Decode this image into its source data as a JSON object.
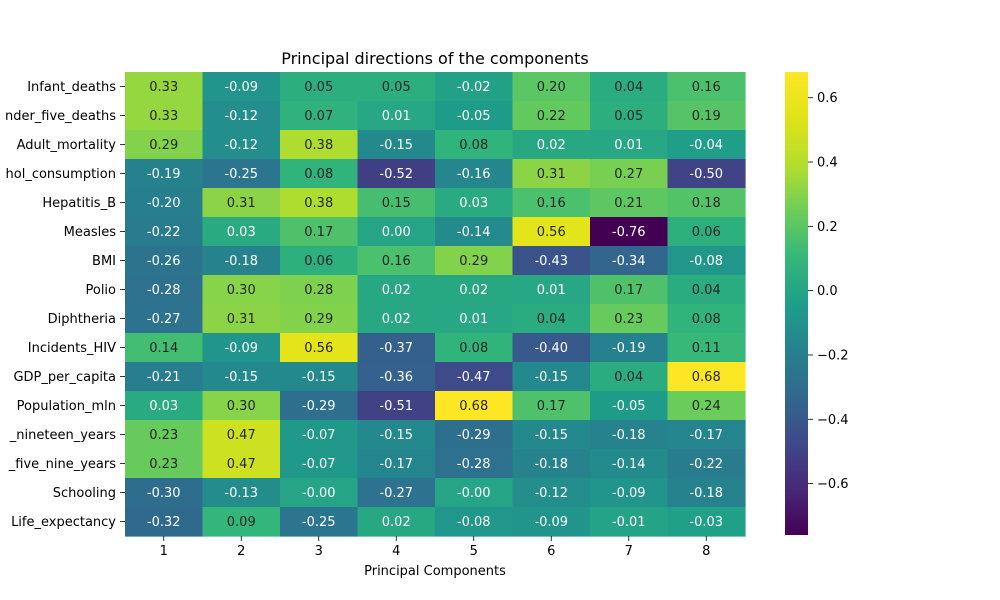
{
  "chart_data": {
    "type": "heatmap",
    "title": "Principal directions of the components",
    "xlabel": "Principal Components",
    "ylabel": "",
    "x_categories": [
      "1",
      "2",
      "3",
      "4",
      "5",
      "6",
      "7",
      "8"
    ],
    "y_labels_visible": [
      "Infant_deaths",
      "nder_five_deaths",
      "Adult_mortality",
      "hol_consumption",
      "Hepatitis_B",
      "Measles",
      "BMI",
      "Polio",
      "Diphtheria",
      "Incidents_HIV",
      "GDP_per_capita",
      "Population_mln",
      "_nineteen_years",
      "_five_nine_years",
      "Schooling",
      "Life_expectancy"
    ],
    "values": [
      [
        0.33,
        -0.09,
        0.05,
        0.05,
        -0.02,
        0.2,
        0.04,
        0.16
      ],
      [
        0.33,
        -0.12,
        0.07,
        0.01,
        -0.05,
        0.22,
        0.05,
        0.19
      ],
      [
        0.29,
        -0.12,
        0.38,
        -0.15,
        0.08,
        0.02,
        0.01,
        -0.04
      ],
      [
        -0.19,
        -0.25,
        0.08,
        -0.52,
        -0.16,
        0.31,
        0.27,
        -0.5
      ],
      [
        -0.2,
        0.31,
        0.38,
        0.15,
        0.03,
        0.16,
        0.21,
        0.18
      ],
      [
        -0.22,
        0.03,
        0.17,
        0.0,
        -0.14,
        0.56,
        -0.76,
        0.06
      ],
      [
        -0.26,
        -0.18,
        0.06,
        0.16,
        0.29,
        -0.43,
        -0.34,
        -0.08
      ],
      [
        -0.28,
        0.3,
        0.28,
        0.02,
        0.02,
        0.01,
        0.17,
        0.04
      ],
      [
        -0.27,
        0.31,
        0.29,
        0.02,
        0.01,
        0.04,
        0.23,
        0.08
      ],
      [
        0.14,
        -0.09,
        0.56,
        -0.37,
        0.08,
        -0.4,
        -0.19,
        0.11
      ],
      [
        -0.21,
        -0.15,
        -0.15,
        -0.36,
        -0.47,
        -0.15,
        0.04,
        0.68
      ],
      [
        0.03,
        0.3,
        -0.29,
        -0.51,
        0.68,
        0.17,
        -0.05,
        0.24
      ],
      [
        0.23,
        0.47,
        -0.07,
        -0.15,
        -0.29,
        -0.15,
        -0.18,
        -0.17
      ],
      [
        0.23,
        0.47,
        -0.07,
        -0.17,
        -0.28,
        -0.18,
        -0.14,
        -0.22
      ],
      [
        -0.3,
        -0.13,
        -0.0,
        -0.27,
        -0.0,
        -0.12,
        -0.09,
        -0.18
      ],
      [
        -0.32,
        0.09,
        -0.25,
        0.02,
        -0.08,
        -0.09,
        -0.01,
        -0.03
      ]
    ],
    "value_labels": [
      [
        "0.33",
        "-0.09",
        "0.05",
        "0.05",
        "-0.02",
        "0.20",
        "0.04",
        "0.16"
      ],
      [
        "0.33",
        "-0.12",
        "0.07",
        "0.01",
        "-0.05",
        "0.22",
        "0.05",
        "0.19"
      ],
      [
        "0.29",
        "-0.12",
        "0.38",
        "-0.15",
        "0.08",
        "0.02",
        "0.01",
        "-0.04"
      ],
      [
        "-0.19",
        "-0.25",
        "0.08",
        "-0.52",
        "-0.16",
        "0.31",
        "0.27",
        "-0.50"
      ],
      [
        "-0.20",
        "0.31",
        "0.38",
        "0.15",
        "0.03",
        "0.16",
        "0.21",
        "0.18"
      ],
      [
        "-0.22",
        "0.03",
        "0.17",
        "0.00",
        "-0.14",
        "0.56",
        "-0.76",
        "0.06"
      ],
      [
        "-0.26",
        "-0.18",
        "0.06",
        "0.16",
        "0.29",
        "-0.43",
        "-0.34",
        "-0.08"
      ],
      [
        "-0.28",
        "0.30",
        "0.28",
        "0.02",
        "0.02",
        "0.01",
        "0.17",
        "0.04"
      ],
      [
        "-0.27",
        "0.31",
        "0.29",
        "0.02",
        "0.01",
        "0.04",
        "0.23",
        "0.08"
      ],
      [
        "0.14",
        "-0.09",
        "0.56",
        "-0.37",
        "0.08",
        "-0.40",
        "-0.19",
        "0.11"
      ],
      [
        "-0.21",
        "-0.15",
        "-0.15",
        "-0.36",
        "-0.47",
        "-0.15",
        "0.04",
        "0.68"
      ],
      [
        "0.03",
        "0.30",
        "-0.29",
        "-0.51",
        "0.68",
        "0.17",
        "-0.05",
        "0.24"
      ],
      [
        "0.23",
        "0.47",
        "-0.07",
        "-0.15",
        "-0.29",
        "-0.15",
        "-0.18",
        "-0.17"
      ],
      [
        "0.23",
        "0.47",
        "-0.07",
        "-0.17",
        "-0.28",
        "-0.18",
        "-0.14",
        "-0.22"
      ],
      [
        "-0.30",
        "-0.13",
        "-0.00",
        "-0.27",
        "-0.00",
        "-0.12",
        "-0.09",
        "-0.18"
      ],
      [
        "-0.32",
        "0.09",
        "-0.25",
        "0.02",
        "-0.08",
        "-0.09",
        "-0.01",
        "-0.03"
      ]
    ],
    "colormap": "viridis",
    "color_range": [
      -0.76,
      0.68
    ],
    "colorbar_ticks": [
      -0.6,
      -0.4,
      -0.2,
      0.0,
      0.2,
      0.4,
      0.6
    ],
    "colorbar_tick_labels": [
      "−0.6",
      "−0.4",
      "−0.2",
      "0.0",
      "0.2",
      "0.4",
      "0.6"
    ],
    "grid": false,
    "legend": "colorbar-right"
  }
}
